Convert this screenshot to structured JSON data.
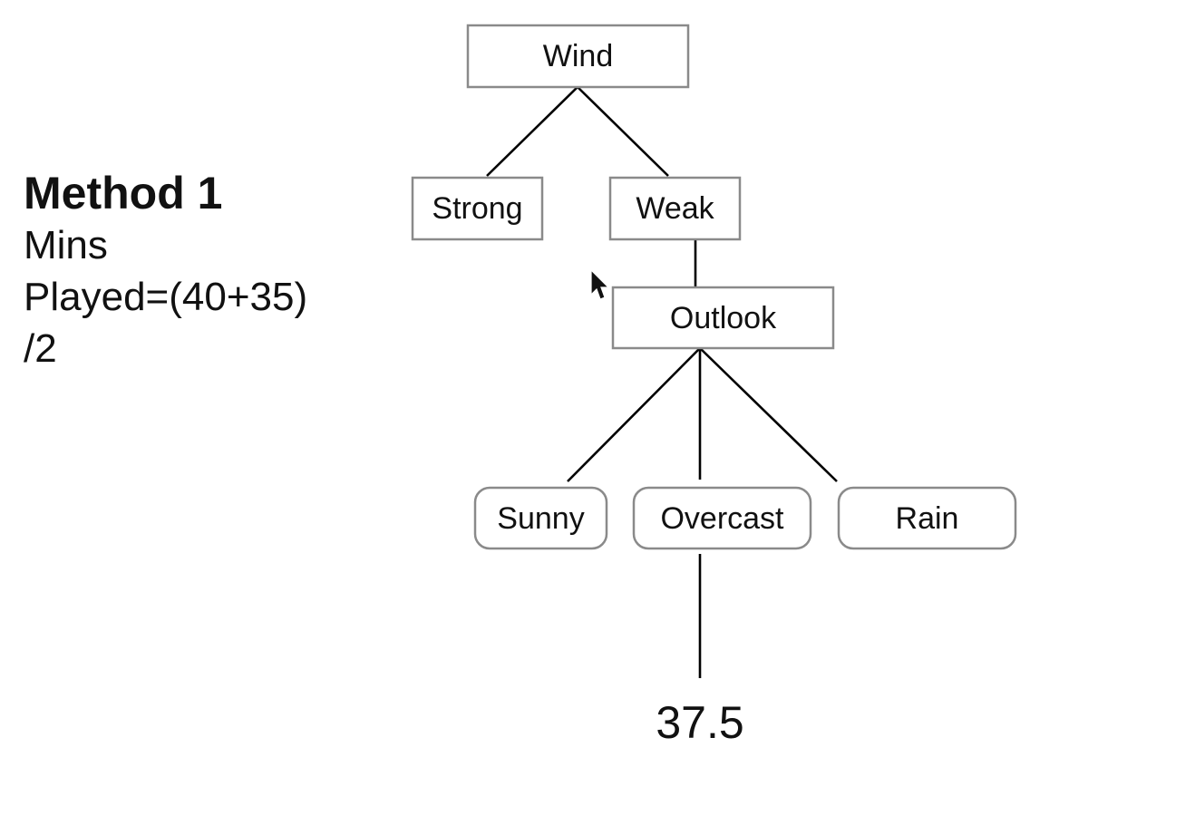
{
  "method": {
    "title": "Method 1",
    "lines": [
      "Mins",
      "Played=(40+35)",
      "/2"
    ]
  },
  "tree": {
    "root": "Wind",
    "wind_branches": [
      "Strong",
      "Weak"
    ],
    "subnode": "Outlook",
    "outlook_branches": [
      "Sunny",
      "Overcast",
      "Rain"
    ],
    "result": "37.5"
  },
  "colors": {
    "box_stroke": "#8a8a8a",
    "edge": "#000000",
    "text": "#111111"
  },
  "icons": {
    "cursor": "mouse-pointer-icon"
  }
}
